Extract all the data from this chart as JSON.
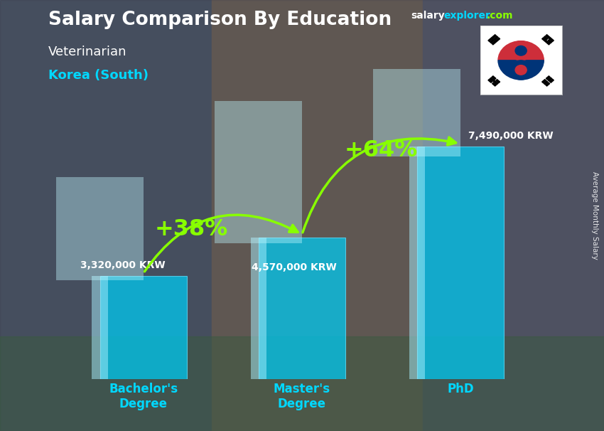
{
  "title_main": "Salary Comparison By Education",
  "subtitle_job": "Veterinarian",
  "subtitle_country": "Korea (South)",
  "ylabel_text": "Average Monthly Salary",
  "categories": [
    "Bachelor's\nDegree",
    "Master's\nDegree",
    "PhD"
  ],
  "values": [
    3320000,
    4570000,
    7490000
  ],
  "value_labels": [
    "3,320,000 KRW",
    "4,570,000 KRW",
    "7,490,000 KRW"
  ],
  "pct_labels": [
    "+38%",
    "+64%"
  ],
  "bar_color": "#00c8f0",
  "bar_alpha": 0.75,
  "bar_edge_color": "#60e0ff",
  "arrow_color": "#88ff00",
  "bg_color": "#606070",
  "title_color": "#ffffff",
  "job_color": "#ffffff",
  "country_color": "#00d8ff",
  "value_label_color": "#ffffff",
  "pct_color": "#88ff00",
  "xtick_color": "#00d8ff",
  "site_salary_color": "#ffffff",
  "site_explorer_color": "#00d8ff",
  "site_com_color": "#88ff00",
  "ylim_max": 10000000,
  "bar_width": 0.55
}
